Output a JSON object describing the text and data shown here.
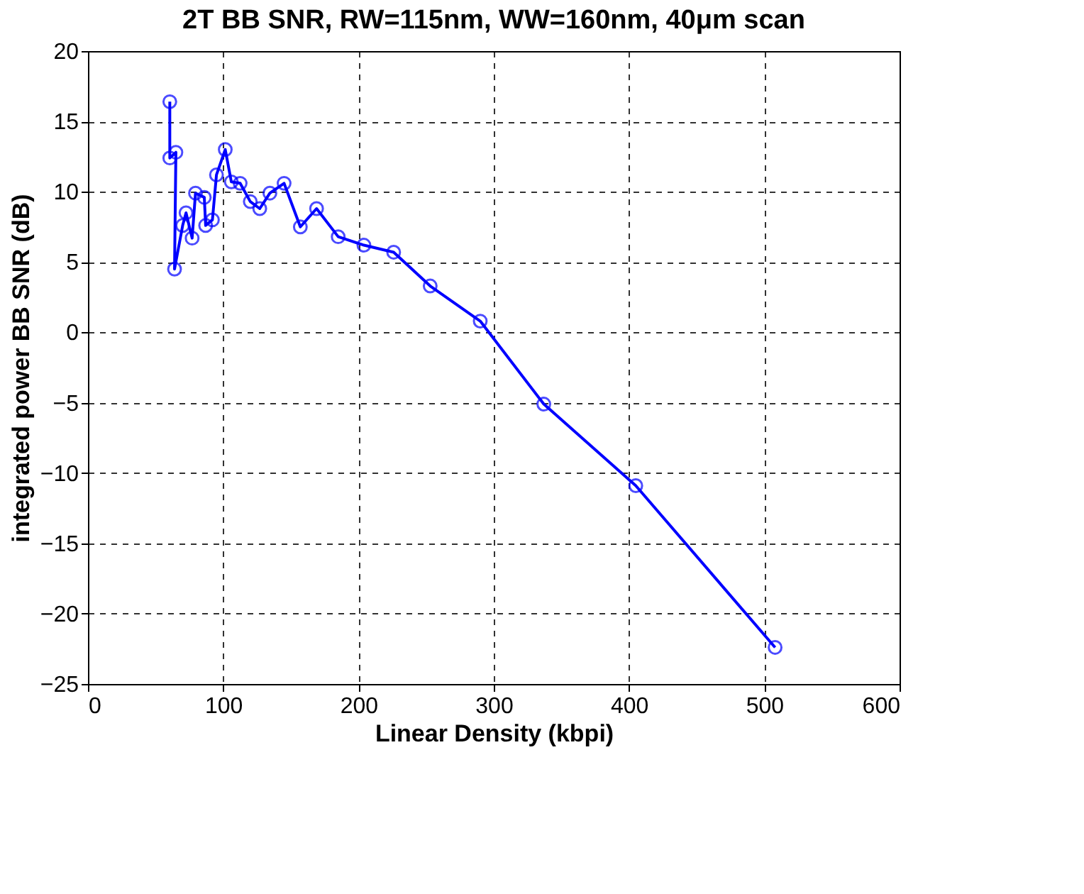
{
  "chart_data": {
    "type": "line",
    "title": "2T BB SNR, RW=115nm, WW=160nm, 40μm scan",
    "xlabel": "Linear Density (kbpi)",
    "ylabel": "integrated power BB SNR (dB)",
    "x": [
      60.5,
      60.5,
      65,
      64,
      70,
      72.5,
      77,
      79.5,
      86,
      87,
      92,
      95,
      101.5,
      106,
      112.5,
      120,
      127,
      134.5,
      145,
      157,
      169,
      185,
      204,
      226,
      253,
      290,
      337,
      405,
      508
    ],
    "series": [
      {
        "color": "#0000ff",
        "values": [
          16.4,
          12.4,
          12.8,
          4.5,
          7.6,
          8.5,
          6.7,
          9.9,
          9.6,
          7.6,
          8.0,
          11.2,
          13.0,
          10.7,
          10.6,
          9.3,
          8.8,
          9.9,
          10.6,
          7.5,
          8.8,
          6.8,
          6.2,
          5.7,
          3.3,
          0.8,
          -5.1,
          -10.9,
          -22.4
        ]
      }
    ],
    "xlim": [
      0,
      600
    ],
    "xticks": [
      0,
      100,
      200,
      300,
      400,
      500,
      600
    ],
    "ylim": [
      -25,
      20
    ],
    "yticks": [
      -25,
      -20,
      -15,
      -10,
      -5,
      0,
      5,
      10,
      15,
      20
    ],
    "grid": true,
    "marker": "circle",
    "line_style": "solid"
  }
}
